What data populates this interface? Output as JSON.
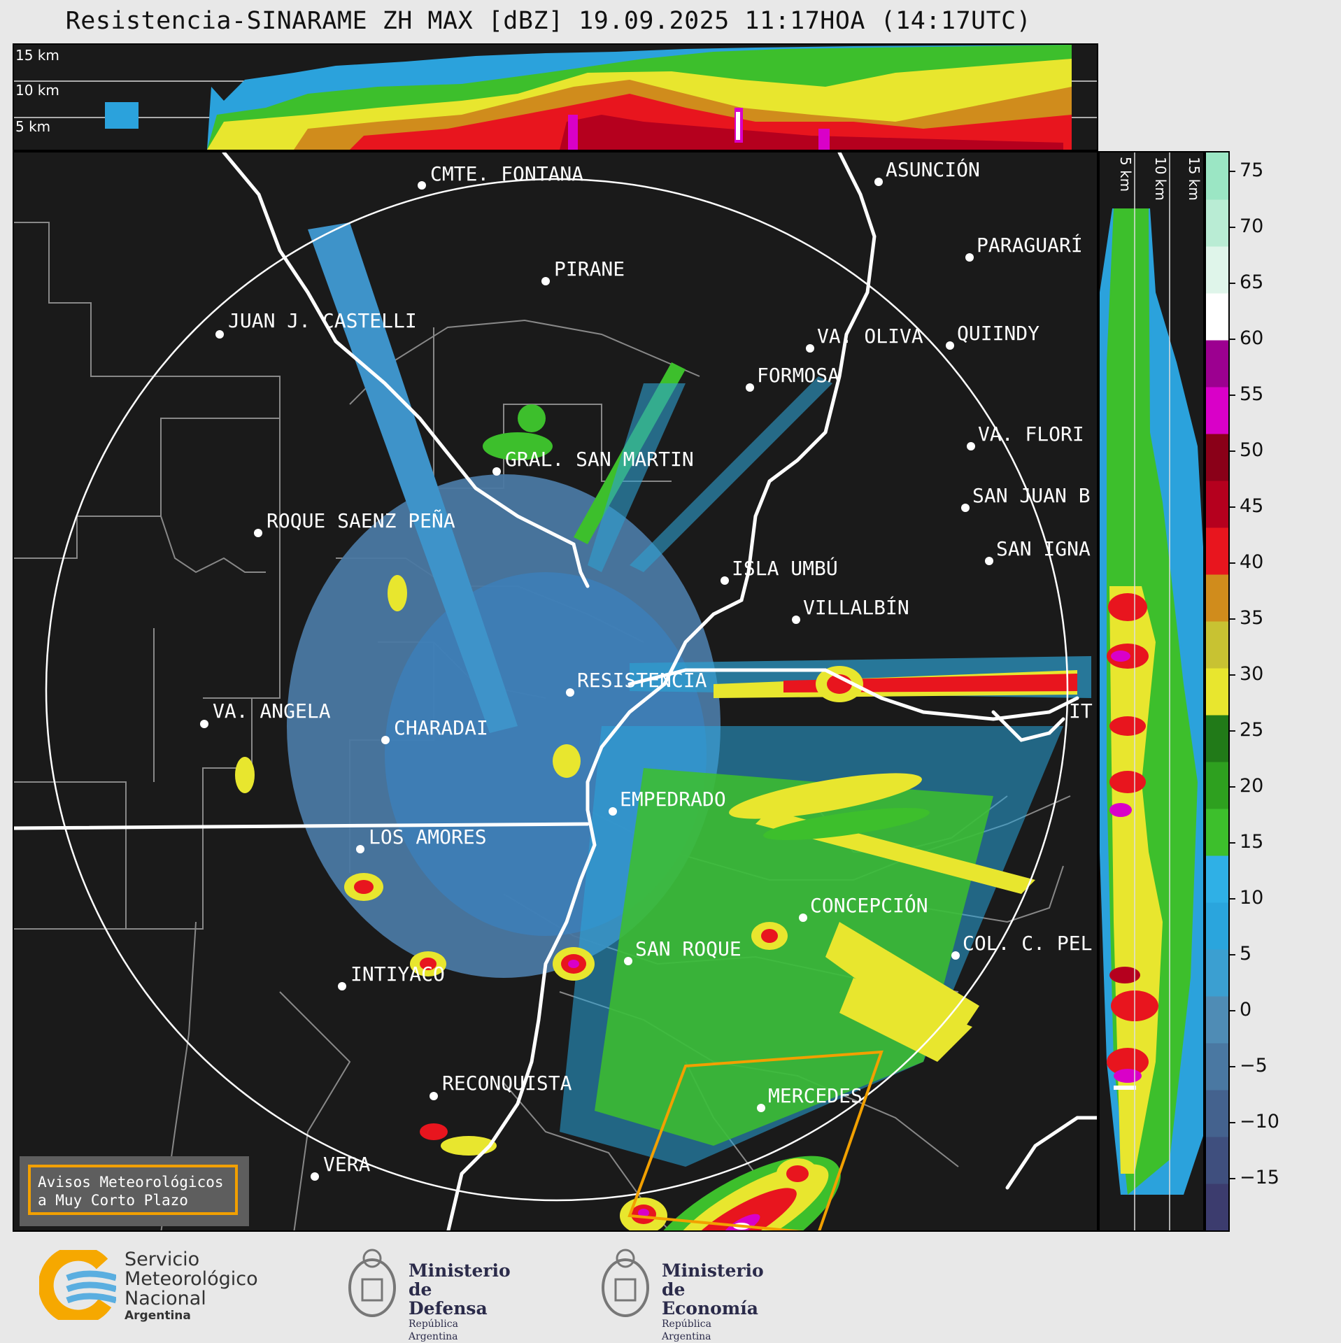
{
  "title": "Resistencia-SINARAME ZH MAX [dBZ] 19.09.2025 11:17HOA (14:17UTC)",
  "top_panel": {
    "altitude_labels": [
      "15 km",
      "10 km",
      "5 km"
    ]
  },
  "side_panel": {
    "altitude_labels": [
      "5 km",
      "10 km",
      "15 km"
    ]
  },
  "colorbar": {
    "unit": "dBZ",
    "ticks": [
      "75",
      "70",
      "65",
      "60",
      "55",
      "50",
      "45",
      "40",
      "35",
      "30",
      "25",
      "20",
      "15",
      "10",
      "5",
      "0",
      "−5",
      "−10",
      "−15"
    ],
    "colors": [
      "#3c3c6e",
      "#3f4f7e",
      "#44628e",
      "#4a78a2",
      "#4f8cb5",
      "#3b9fd1",
      "#2aa5dd",
      "#2fb0e6",
      "#3dbf2c",
      "#2ea01f",
      "#217a18",
      "#e8e62e",
      "#c8c232",
      "#d08c1c",
      "#e8151e",
      "#b5001e",
      "#8a0018",
      "#d900c8",
      "#9c0090",
      "#ffffff",
      "#dff5ea",
      "#b9ecd4",
      "#9be6c4"
    ]
  },
  "cities": [
    "CMTE. FONTANA",
    "PIRANE",
    "JUAN J. CASTELLI",
    "GRAL. SAN MARTIN",
    "ROQUE SAENZ PEÑA",
    "VA. ANGELA",
    "CHARADAI",
    "LOS AMORES",
    "INTIYACO",
    "RECONQUISTA",
    "VERA",
    "RESISTENCIA",
    "EMPEDRADO",
    "SAN ROQUE",
    "CONCEPCIÓN",
    "MERCEDES",
    "ISLA UMBÚ",
    "VILLALBÍN",
    "FORMOSA",
    "VA. OLIVA",
    "ASUNCIÓN",
    "PARAGUARÍ",
    "QUIINDY",
    "VA. FLORI",
    "SAN JUAN B",
    "SAN IGNA",
    "COL. C. PEL",
    "IT"
  ],
  "warning_box": {
    "line1": "Avisos Meteorológicos",
    "line2": "a Muy Corto Plazo"
  },
  "footer": {
    "smn": {
      "line1": "Servicio",
      "line2": "Meteorológico",
      "line3": "Nacional",
      "line4": "Argentina"
    },
    "defensa": {
      "line1": "Ministerio",
      "line2": "de Defensa",
      "line3": "República Argentina"
    },
    "economia": {
      "line1": "Ministerio",
      "line2": "de Economía",
      "line3": "República Argentina"
    }
  },
  "colors": {
    "radar_ring": "#ffffff",
    "warning_polygon": "#f2a000",
    "background": "#1a1a1a"
  }
}
